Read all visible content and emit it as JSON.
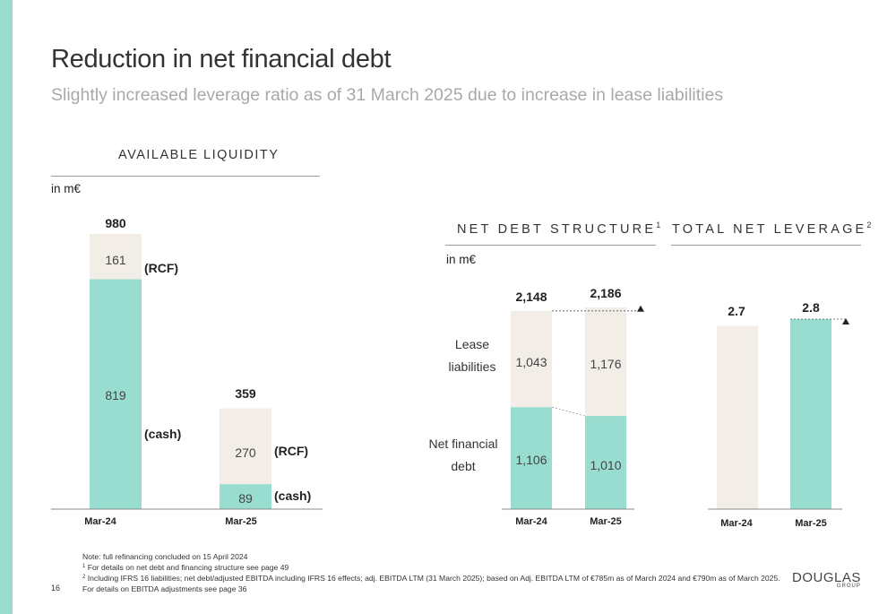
{
  "title": "Reduction in net financial debt",
  "subtitle": "Slightly increased leverage ratio as of 31 March 2025 due to increase in lease liabilities",
  "colors": {
    "teal": "#99dcd0",
    "beige": "#f2eee7",
    "accent_bar": "#99dcd0"
  },
  "chart_data": [
    {
      "type": "bar",
      "title": "AVAILABLE LIQUIDITY",
      "unit": "in m€",
      "categories": [
        "Mar-24",
        "Mar-25"
      ],
      "series": [
        {
          "name": "(cash)",
          "values": [
            819,
            89
          ]
        },
        {
          "name": "(RCF)",
          "values": [
            161,
            270
          ]
        }
      ],
      "totals": [
        980,
        359
      ],
      "value_labels": {
        "cash": [
          "819",
          "89"
        ],
        "rcf": [
          "161",
          "270"
        ],
        "totals": [
          "980",
          "359"
        ]
      }
    },
    {
      "type": "bar",
      "title": "NET DEBT STRUCTURE",
      "title_sup": "1",
      "unit": "in m€",
      "categories": [
        "Mar-24",
        "Mar-25"
      ],
      "series": [
        {
          "name": "Net financial debt",
          "values": [
            1106,
            1010
          ]
        },
        {
          "name": "Lease liabilities",
          "values": [
            1043,
            1176
          ]
        }
      ],
      "totals": [
        2148,
        2186
      ],
      "value_labels": {
        "nfd": [
          "1,106",
          "1,010"
        ],
        "lease": [
          "1,043",
          "1,176"
        ],
        "totals": [
          "2,148",
          "2,186"
        ]
      },
      "series_labels": {
        "lease_line1": "Lease",
        "lease_line2": "liabilities",
        "nfd_line1": "Net financial",
        "nfd_line2": "debt"
      }
    },
    {
      "type": "bar",
      "title": "TOTAL NET LEVERAGE",
      "title_sup": "2",
      "categories": [
        "Mar-24",
        "Mar-25"
      ],
      "values": [
        2.7,
        2.8
      ],
      "value_labels": [
        "2.7",
        "2.8"
      ]
    }
  ],
  "footnotes": {
    "note": "Note: full refinancing concluded on 15 April 2024",
    "fn1_sup": "1",
    "fn1": " For details on net debt and financing structure see page 49",
    "fn2_sup": "2",
    "fn2": " Including IFRS 16 liabilities; net debt/adjusted EBITDA including IFRS 16 effects; adj. EBITDA LTM (31 March 2025); based on Adj. EBITDA LTM of €785m as of March 2024 and €790m as of March 2025.",
    "fn3": "For details on EBITDA adjustments see page 36"
  },
  "page_number": "16",
  "logo": {
    "main": "DOUGLAS",
    "sub": "GROUP"
  }
}
